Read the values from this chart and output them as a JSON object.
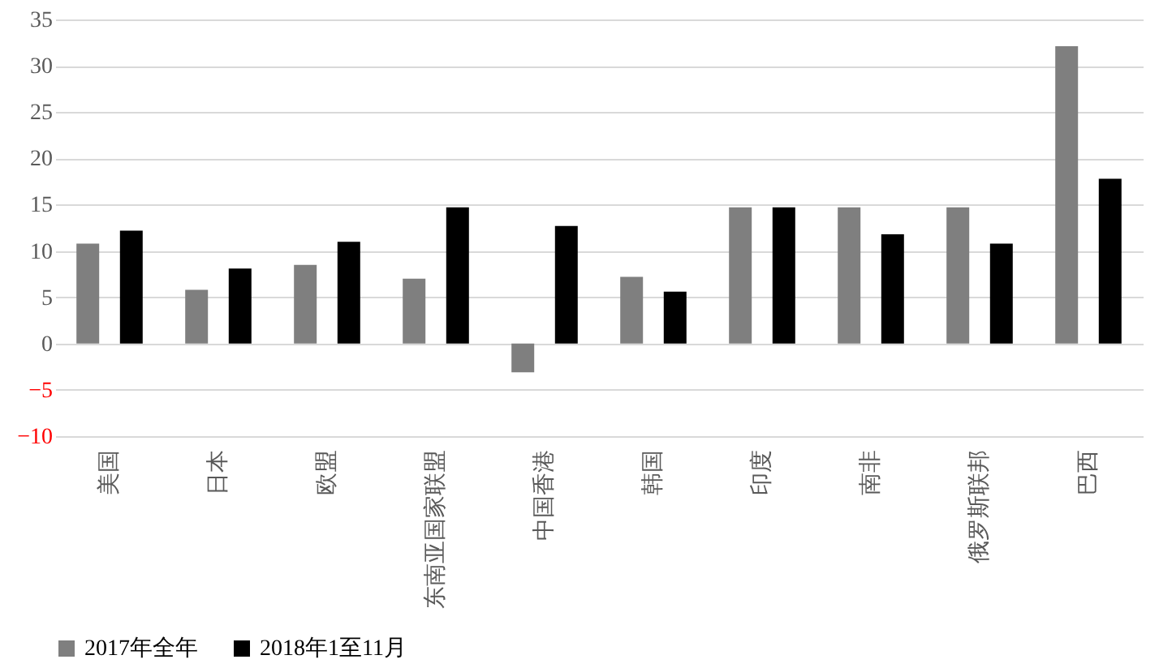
{
  "chart_data": {
    "type": "bar",
    "categories": [
      "美国",
      "日本",
      "欧盟",
      "东南亚国家联盟",
      "中国香港",
      "韩国",
      "印度",
      "南非",
      "俄罗斯联邦",
      "巴西"
    ],
    "series": [
      {
        "name": "2017年全年",
        "color": "#7f7f7f",
        "values": [
          10.8,
          5.8,
          8.5,
          7.0,
          -3.1,
          7.2,
          14.7,
          14.7,
          14.7,
          32.1
        ]
      },
      {
        "name": "2018年1至11月",
        "color": "#000000",
        "values": [
          12.2,
          8.1,
          11.0,
          14.7,
          12.7,
          5.6,
          14.7,
          11.8,
          10.8,
          17.8
        ]
      }
    ],
    "ylim": [
      -10,
      35
    ],
    "yticks": [
      -10,
      -5,
      0,
      5,
      10,
      15,
      20,
      25,
      30,
      35
    ],
    "grid": "y",
    "legend": "bottom"
  }
}
